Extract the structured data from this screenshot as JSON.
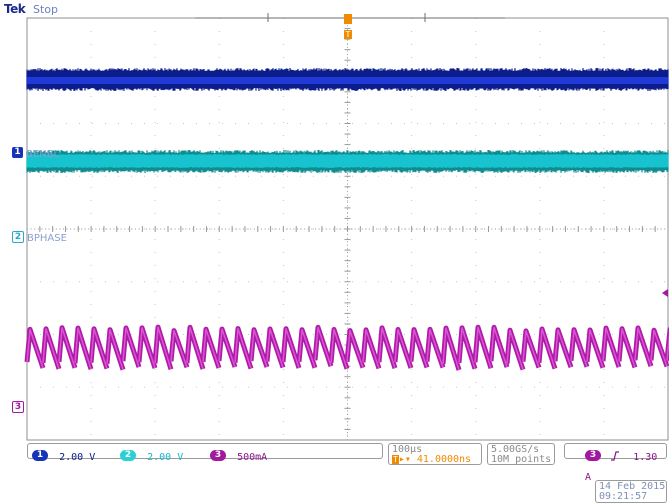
{
  "header": {
    "brand": "Tek",
    "status": "Stop"
  },
  "trigger_marker": "T",
  "channels": [
    {
      "num": "1",
      "name": "BENBL",
      "color": "#1733b8",
      "trace_color": "#0a1d8a",
      "scale": "2.00 V"
    },
    {
      "num": "2",
      "name": "BPHASE",
      "color": "#2ad0d6",
      "trace_color": "#17c3cf",
      "scale": "2.00 V"
    },
    {
      "num": "3",
      "name": "",
      "color": "#a0199e",
      "trace_color": "#b01aa8",
      "scale": "500mA"
    }
  ],
  "timebase": {
    "scale": "100µs",
    "delay_label": "▸▾ 41.0000ns"
  },
  "acquisition": {
    "rate": "5.00GS/s",
    "points": "10M points"
  },
  "trigger": {
    "source": "3",
    "slope_icon": "rising-edge",
    "level": "1.30 A"
  },
  "datetime": {
    "date": "14 Feb 2015",
    "time": "09:21:57"
  },
  "colors": {
    "grid": "#c7c7c7",
    "background": "#ffffff",
    "frame": "#8f8f8f",
    "orange": "#f08a00"
  }
}
